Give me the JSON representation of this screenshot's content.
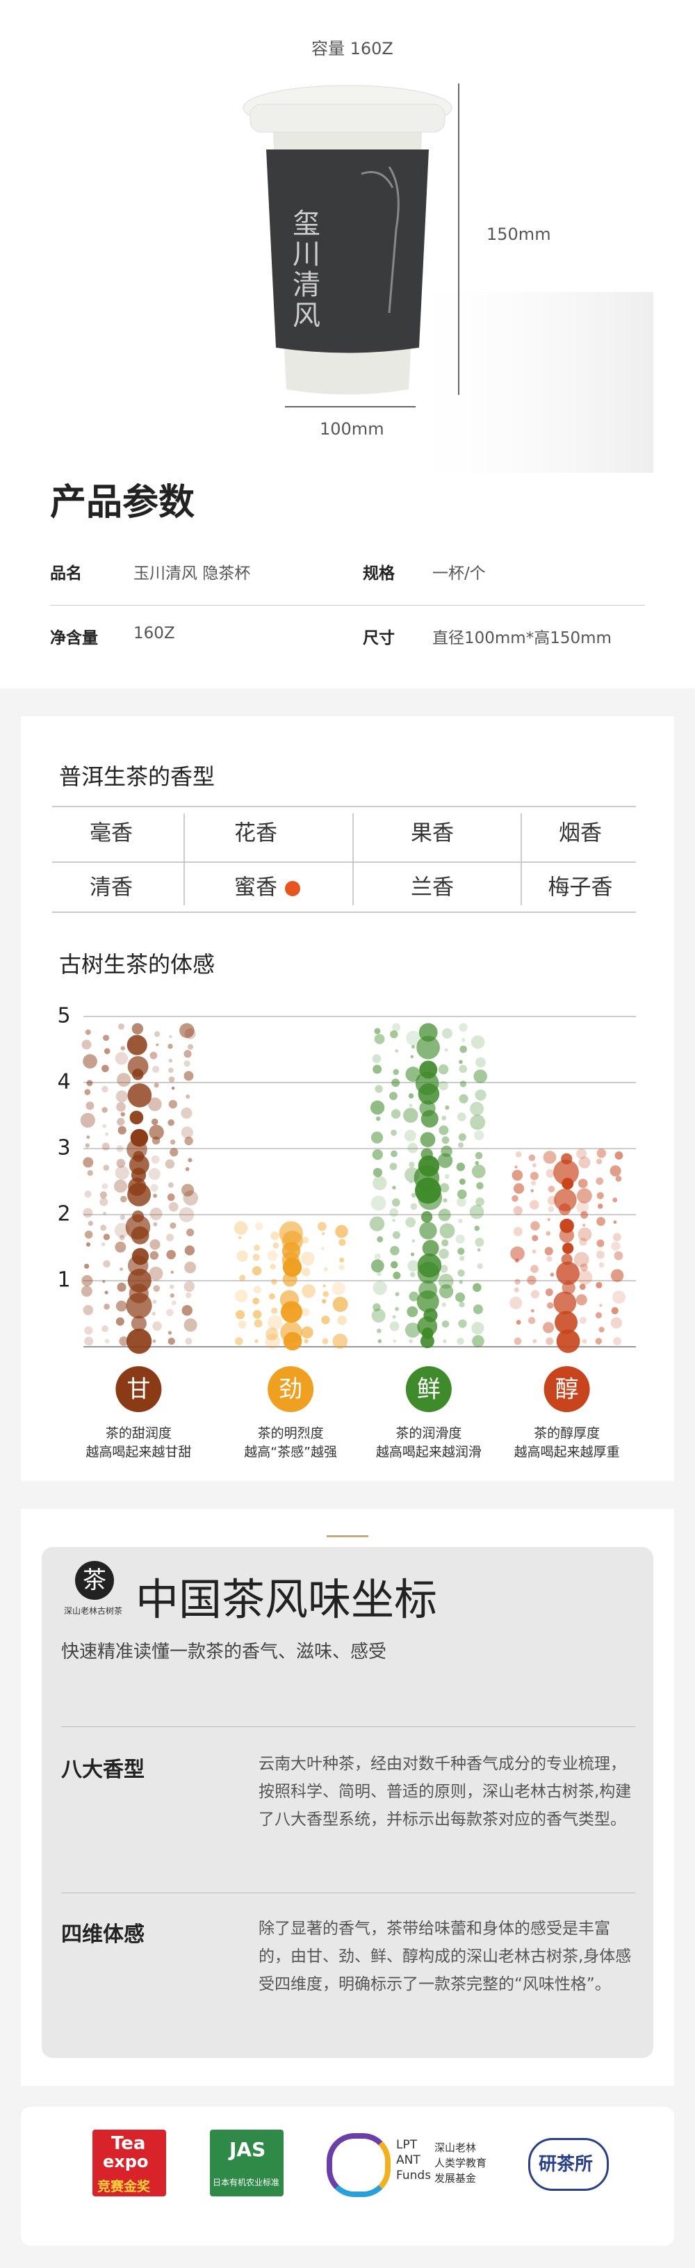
{
  "header": {
    "capacity": "容量 160Z",
    "cup_text": "玺川清风",
    "height_label": "150mm",
    "width_label": "100mm"
  },
  "params": {
    "title": "产品参数",
    "rows": [
      [
        "品名",
        "玉川清风 隐茶杯",
        "规格",
        "一杯/个"
      ],
      [
        "净含量",
        "160Z",
        "尺寸",
        "直径100mm*高150mm"
      ]
    ]
  },
  "aroma": {
    "title": "普洱生茶的香型",
    "rows": [
      [
        "毫香",
        "花香",
        "果香",
        "烟香"
      ],
      [
        "清香",
        "蜜香",
        "兰香",
        "梅子香"
      ]
    ],
    "selected_cell": [
      1,
      1
    ],
    "marker_color": "#e8541e"
  },
  "chart_data": {
    "type": "bubble-column",
    "title": "古树生茶的体感",
    "categories": [
      "甘",
      "劲",
      "鲜",
      "醇"
    ],
    "values": [
      4.9,
      1.9,
      4.9,
      3
    ],
    "colors": [
      "#8a3a14",
      "#f0a020",
      "#3f8a2a",
      "#c8441c"
    ],
    "descriptions": [
      [
        "茶的甜润度",
        "越高喝起来越甘甜"
      ],
      [
        "茶的明烈度",
        "越高“茶感”越强"
      ],
      [
        "茶的润滑度",
        "越高喝起来越润滑"
      ],
      [
        "茶的醇厚度",
        "越高喝起来越厚重"
      ]
    ],
    "ylim": [
      0,
      5
    ],
    "yticks": [
      1,
      2,
      3,
      4,
      5
    ],
    "grid": true
  },
  "flavor": {
    "logo_mark": "茶",
    "logo_caption": "深山老林古树茶",
    "title": "中国茶风味坐标",
    "subtitle": "快速精准读懂一款茶的香气、滋味、感受",
    "items": [
      {
        "heading": "八大香型",
        "text": "云南大叶种茶，经由对数千种香气成分的专业梳理，按照科学、简明、普适的原则，深山老林古树茶,构建了八大香型系统，并标示出每款茶对应的香气类型。"
      },
      {
        "heading": "四维体感",
        "text": "除了显著的香气，茶带给味蕾和身体的感受是丰富的，由甘、劲、鲜、醇构成的深山老林古树茶,身体感受四维度，明确标示了一款茶完整的“风味性格”。"
      }
    ]
  },
  "logos": {
    "tea_expo": [
      "Tea",
      "expo",
      "竞赛金奖"
    ],
    "jas": [
      "JAS",
      "日本有机农业标准"
    ],
    "lpt": [
      "LPT",
      "ANT",
      "Funds",
      "深山老林",
      "人类学教育",
      "发展基金"
    ],
    "yan": [
      "研茶所"
    ]
  }
}
